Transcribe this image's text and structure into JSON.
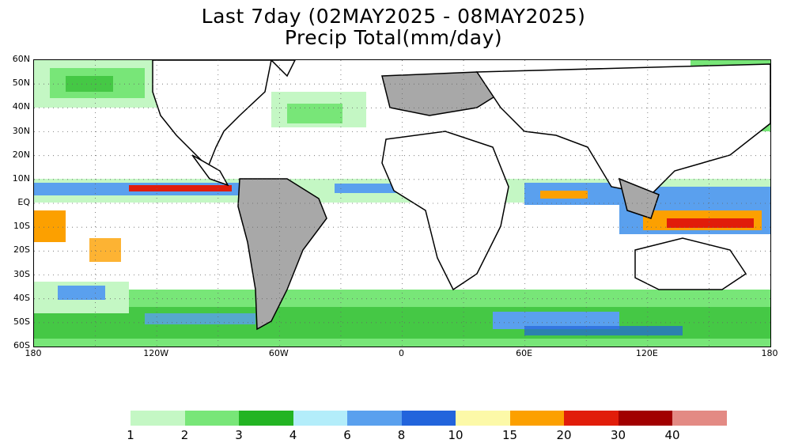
{
  "title": {
    "line1": "Last 7day (02MAY2025 - 08MAY2025)",
    "line2": "Precip Total(mm/day)"
  },
  "map": {
    "lat_labels": [
      "60N",
      "50N",
      "40N",
      "30N",
      "20N",
      "10N",
      "EQ",
      "10S",
      "20S",
      "30S",
      "40S",
      "50S",
      "60S"
    ],
    "lon_labels": [
      "180",
      "120W",
      "60W",
      "0",
      "60E",
      "120E",
      "180"
    ],
    "gridlines": "dotted"
  },
  "colorbar": {
    "labels": [
      "1",
      "2",
      "3",
      "4",
      "6",
      "8",
      "10",
      "15",
      "20",
      "30",
      "40"
    ],
    "colors": [
      "#c4f7c4",
      "#78e678",
      "#23b423",
      "#b3edfa",
      "#5aa0ee",
      "#2264dc",
      "#fcf9a8",
      "#fca000",
      "#e11d0a",
      "#a10000",
      "#e38a84"
    ]
  },
  "colors": {
    "land": "#ffffff",
    "land_rain": "#a8a8a8",
    "coast": "#000000"
  }
}
